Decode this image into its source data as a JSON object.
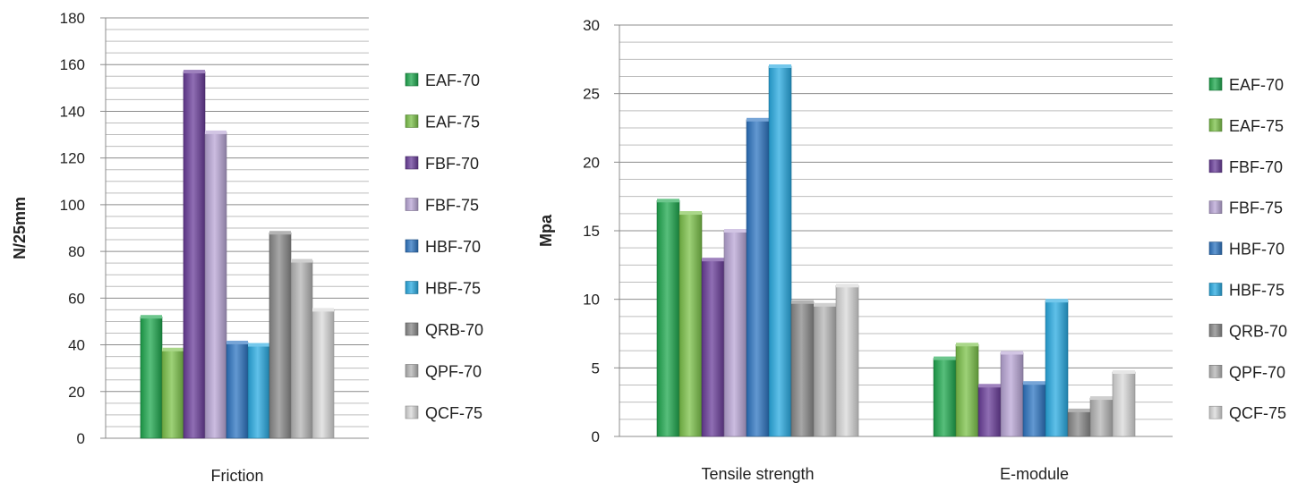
{
  "chart_data": [
    {
      "type": "bar",
      "ylabel": "N/25mm",
      "xlabel": "",
      "ylim": [
        0,
        180
      ],
      "ytick_step": 20,
      "categories": [
        "Friction"
      ],
      "series": [
        {
          "name": "EAF-70",
          "values": [
            52
          ]
        },
        {
          "name": "EAF-75",
          "values": [
            38
          ]
        },
        {
          "name": "FBF-70",
          "values": [
            157
          ]
        },
        {
          "name": "FBF-75",
          "values": [
            131
          ]
        },
        {
          "name": "HBF-70",
          "values": [
            41
          ]
        },
        {
          "name": "HBF-75",
          "values": [
            40
          ]
        },
        {
          "name": "QRB-70",
          "values": [
            88
          ]
        },
        {
          "name": "QPF-70",
          "values": [
            76
          ]
        },
        {
          "name": "QCF-75",
          "values": [
            55
          ]
        }
      ],
      "grid": true,
      "legend": "right"
    },
    {
      "type": "bar",
      "ylabel": "Mpa",
      "xlabel": "",
      "ylim": [
        0,
        30
      ],
      "ytick_step": 5,
      "categories": [
        "Tensile strength",
        "E-module"
      ],
      "series": [
        {
          "name": "EAF-70",
          "values": [
            17.2,
            5.7
          ]
        },
        {
          "name": "EAF-75",
          "values": [
            16.3,
            6.7
          ]
        },
        {
          "name": "FBF-70",
          "values": [
            12.9,
            3.7
          ]
        },
        {
          "name": "FBF-75",
          "values": [
            15.0,
            6.1
          ]
        },
        {
          "name": "HBF-70",
          "values": [
            23.1,
            3.9
          ]
        },
        {
          "name": "HBF-75",
          "values": [
            27.0,
            9.9
          ]
        },
        {
          "name": "QRB-70",
          "values": [
            9.8,
            1.9
          ]
        },
        {
          "name": "QPF-70",
          "values": [
            9.6,
            2.8
          ]
        },
        {
          "name": "QCF-75",
          "values": [
            11.0,
            4.7
          ]
        }
      ],
      "grid": true,
      "legend": "right"
    }
  ],
  "series_colors": [
    "#1fa84f",
    "#7cc24a",
    "#6a3d9a",
    "#b9a6d6",
    "#2e75c2",
    "#29abe2",
    "#8a8a8a",
    "#b5b5b5",
    "#d9d9d9"
  ]
}
